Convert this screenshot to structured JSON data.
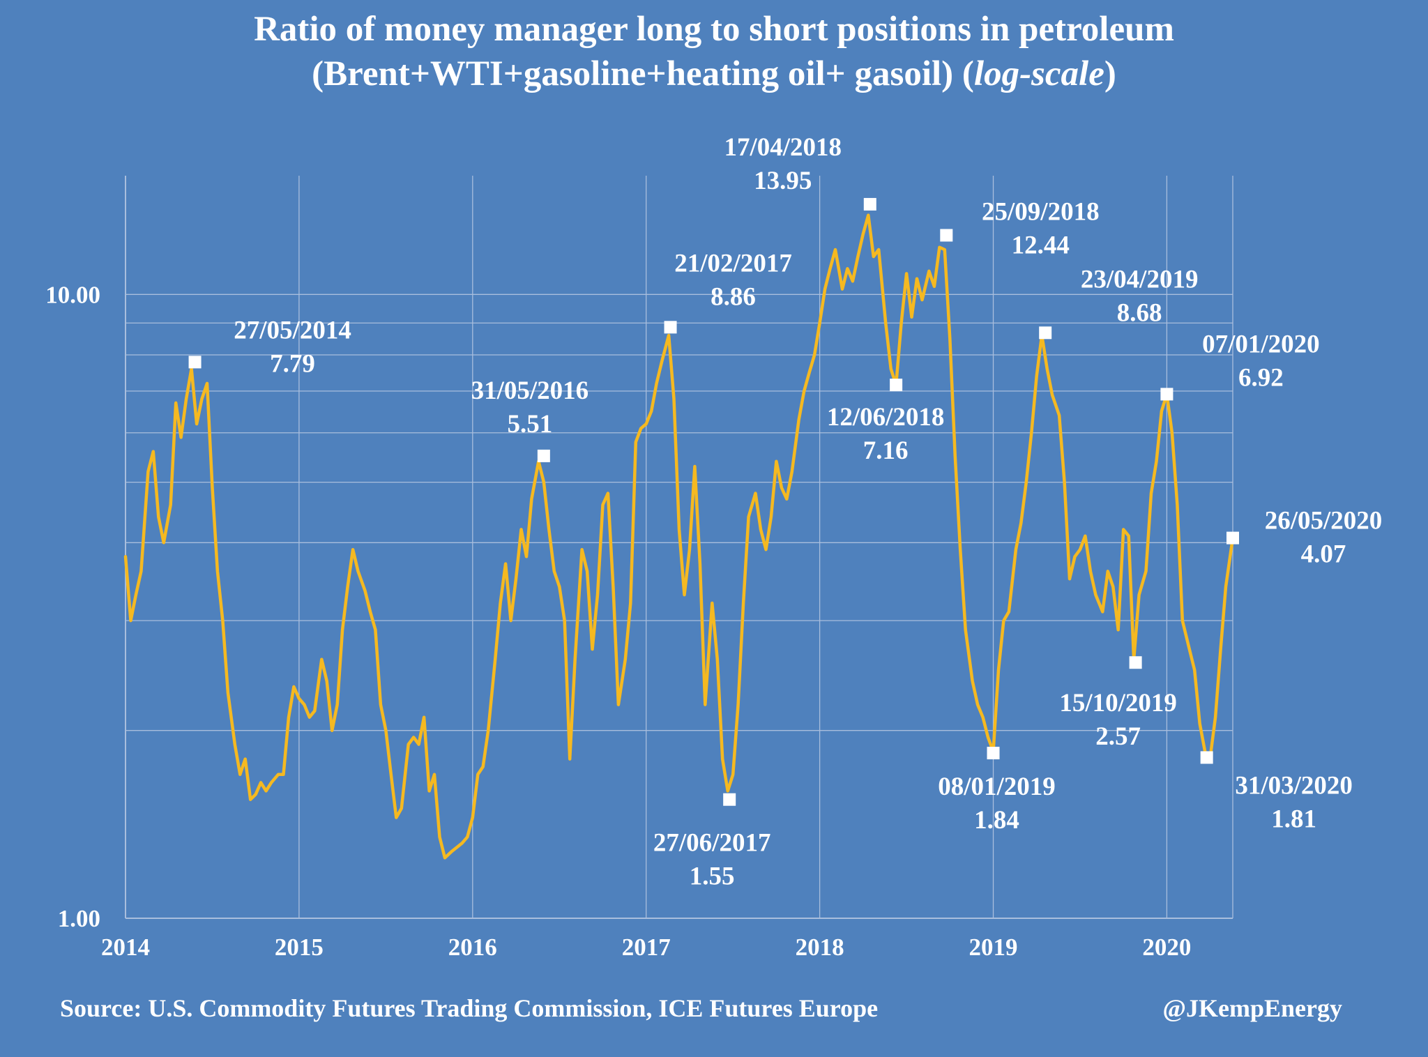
{
  "title_line1": "Ratio of  money manager long to short positions in petroleum",
  "title_line2_pre": "(Brent+WTI+gasoline+heating oil+ gasoil) (",
  "title_line2_italic": "log-scale",
  "title_line2_post": ")",
  "source": "Source: U.S. Commodity Futures Trading Commission, ICE Futures Europe",
  "credit": "@JKempEnergy",
  "colors": {
    "background": "#4f81bd",
    "line": "#f5b921",
    "gridline": "#a9bedd",
    "text": "#ffffff",
    "marker": "#ffffff"
  },
  "chart_data": {
    "type": "line",
    "yscale": "log",
    "ylim": [
      1,
      15.5
    ],
    "xlim": [
      2014.0,
      2020.38
    ],
    "grid": true,
    "yticks": [
      {
        "value": 1,
        "label": "1.00"
      },
      {
        "value": 10,
        "label": "10.00"
      }
    ],
    "ygrid": [
      2,
      3,
      4,
      5,
      6,
      7,
      8,
      9
    ],
    "xticks": [
      {
        "value": 2014,
        "label": "2014"
      },
      {
        "value": 2015,
        "label": "2015"
      },
      {
        "value": 2016,
        "label": "2016"
      },
      {
        "value": 2017,
        "label": "2017"
      },
      {
        "value": 2018,
        "label": "2018"
      },
      {
        "value": 2019,
        "label": "2019"
      },
      {
        "value": 2020,
        "label": "2020"
      }
    ],
    "series": [
      {
        "points": [
          [
            2014.0,
            3.8
          ],
          [
            2014.03,
            3.0
          ],
          [
            2014.06,
            3.3
          ],
          [
            2014.09,
            3.6
          ],
          [
            2014.13,
            5.2
          ],
          [
            2014.16,
            5.6
          ],
          [
            2014.19,
            4.4
          ],
          [
            2014.22,
            4.0
          ],
          [
            2014.26,
            4.6
          ],
          [
            2014.29,
            6.7
          ],
          [
            2014.32,
            5.9
          ],
          [
            2014.35,
            6.8
          ],
          [
            2014.38,
            7.6
          ],
          [
            2014.41,
            6.2
          ],
          [
            2014.44,
            6.8
          ],
          [
            2014.47,
            7.2
          ],
          [
            2014.5,
            4.9
          ],
          [
            2014.53,
            3.6
          ],
          [
            2014.56,
            3.0
          ],
          [
            2014.59,
            2.3
          ],
          [
            2014.63,
            1.9
          ],
          [
            2014.66,
            1.7
          ],
          [
            2014.69,
            1.8
          ],
          [
            2014.72,
            1.55
          ],
          [
            2014.75,
            1.58
          ],
          [
            2014.78,
            1.65
          ],
          [
            2014.81,
            1.6
          ],
          [
            2014.84,
            1.65
          ],
          [
            2014.88,
            1.7
          ],
          [
            2014.91,
            1.7
          ],
          [
            2014.94,
            2.1
          ],
          [
            2014.97,
            2.35
          ],
          [
            2015.0,
            2.25
          ],
          [
            2015.03,
            2.2
          ],
          [
            2015.06,
            2.1
          ],
          [
            2015.09,
            2.15
          ],
          [
            2015.13,
            2.6
          ],
          [
            2015.16,
            2.4
          ],
          [
            2015.19,
            2.0
          ],
          [
            2015.22,
            2.2
          ],
          [
            2015.25,
            2.9
          ],
          [
            2015.28,
            3.4
          ],
          [
            2015.31,
            3.9
          ],
          [
            2015.34,
            3.6
          ],
          [
            2015.38,
            3.35
          ],
          [
            2015.41,
            3.1
          ],
          [
            2015.44,
            2.9
          ],
          [
            2015.47,
            2.2
          ],
          [
            2015.5,
            2.0
          ],
          [
            2015.53,
            1.7
          ],
          [
            2015.56,
            1.45
          ],
          [
            2015.59,
            1.5
          ],
          [
            2015.63,
            1.9
          ],
          [
            2015.66,
            1.95
          ],
          [
            2015.69,
            1.9
          ],
          [
            2015.72,
            2.1
          ],
          [
            2015.75,
            1.6
          ],
          [
            2015.78,
            1.7
          ],
          [
            2015.81,
            1.35
          ],
          [
            2015.84,
            1.25
          ],
          [
            2015.88,
            1.28
          ],
          [
            2015.91,
            1.3
          ],
          [
            2015.94,
            1.32
          ],
          [
            2015.97,
            1.35
          ],
          [
            2016.0,
            1.45
          ],
          [
            2016.03,
            1.7
          ],
          [
            2016.06,
            1.75
          ],
          [
            2016.09,
            2.0
          ],
          [
            2016.13,
            2.6
          ],
          [
            2016.16,
            3.2
          ],
          [
            2016.19,
            3.7
          ],
          [
            2016.22,
            3.0
          ],
          [
            2016.25,
            3.5
          ],
          [
            2016.28,
            4.2
          ],
          [
            2016.31,
            3.8
          ],
          [
            2016.34,
            4.7
          ],
          [
            2016.38,
            5.4
          ],
          [
            2016.41,
            5.0
          ],
          [
            2016.44,
            4.2
          ],
          [
            2016.47,
            3.6
          ],
          [
            2016.5,
            3.4
          ],
          [
            2016.53,
            3.0
          ],
          [
            2016.56,
            1.8
          ],
          [
            2016.59,
            2.6
          ],
          [
            2016.63,
            3.9
          ],
          [
            2016.66,
            3.6
          ],
          [
            2016.69,
            2.7
          ],
          [
            2016.72,
            3.3
          ],
          [
            2016.75,
            4.6
          ],
          [
            2016.78,
            4.8
          ],
          [
            2016.81,
            3.4
          ],
          [
            2016.84,
            2.2
          ],
          [
            2016.88,
            2.6
          ],
          [
            2016.91,
            3.2
          ],
          [
            2016.94,
            5.8
          ],
          [
            2016.97,
            6.1
          ],
          [
            2017.0,
            6.2
          ],
          [
            2017.03,
            6.5
          ],
          [
            2017.06,
            7.2
          ],
          [
            2017.09,
            7.8
          ],
          [
            2017.13,
            8.6
          ],
          [
            2017.16,
            6.8
          ],
          [
            2017.19,
            4.2
          ],
          [
            2017.22,
            3.3
          ],
          [
            2017.25,
            3.9
          ],
          [
            2017.28,
            5.3
          ],
          [
            2017.31,
            3.7
          ],
          [
            2017.34,
            2.2
          ],
          [
            2017.38,
            3.2
          ],
          [
            2017.41,
            2.6
          ],
          [
            2017.44,
            1.8
          ],
          [
            2017.47,
            1.6
          ],
          [
            2017.5,
            1.7
          ],
          [
            2017.53,
            2.2
          ],
          [
            2017.56,
            3.2
          ],
          [
            2017.59,
            4.4
          ],
          [
            2017.63,
            4.8
          ],
          [
            2017.66,
            4.2
          ],
          [
            2017.69,
            3.9
          ],
          [
            2017.72,
            4.4
          ],
          [
            2017.75,
            5.4
          ],
          [
            2017.78,
            4.9
          ],
          [
            2017.81,
            4.7
          ],
          [
            2017.84,
            5.2
          ],
          [
            2017.88,
            6.3
          ],
          [
            2017.91,
            7.0
          ],
          [
            2017.94,
            7.5
          ],
          [
            2017.97,
            8.0
          ],
          [
            2018.0,
            9.0
          ],
          [
            2018.03,
            10.2
          ],
          [
            2018.06,
            11.0
          ],
          [
            2018.09,
            11.8
          ],
          [
            2018.13,
            10.2
          ],
          [
            2018.16,
            11.0
          ],
          [
            2018.19,
            10.5
          ],
          [
            2018.22,
            11.5
          ],
          [
            2018.25,
            12.5
          ],
          [
            2018.28,
            13.4
          ],
          [
            2018.31,
            11.5
          ],
          [
            2018.34,
            11.8
          ],
          [
            2018.38,
            9.0
          ],
          [
            2018.41,
            7.6
          ],
          [
            2018.44,
            7.16
          ],
          [
            2018.47,
            9.0
          ],
          [
            2018.5,
            10.8
          ],
          [
            2018.53,
            9.2
          ],
          [
            2018.56,
            10.6
          ],
          [
            2018.59,
            9.8
          ],
          [
            2018.63,
            10.9
          ],
          [
            2018.66,
            10.3
          ],
          [
            2018.69,
            11.9
          ],
          [
            2018.72,
            11.8
          ],
          [
            2018.75,
            8.5
          ],
          [
            2018.78,
            5.5
          ],
          [
            2018.81,
            3.9
          ],
          [
            2018.84,
            2.9
          ],
          [
            2018.88,
            2.4
          ],
          [
            2018.91,
            2.2
          ],
          [
            2018.94,
            2.1
          ],
          [
            2018.97,
            1.95
          ],
          [
            2019.0,
            1.85
          ],
          [
            2019.03,
            2.5
          ],
          [
            2019.06,
            3.0
          ],
          [
            2019.09,
            3.1
          ],
          [
            2019.13,
            3.9
          ],
          [
            2019.16,
            4.3
          ],
          [
            2019.19,
            5.0
          ],
          [
            2019.22,
            6.0
          ],
          [
            2019.25,
            7.4
          ],
          [
            2019.28,
            8.6
          ],
          [
            2019.31,
            7.6
          ],
          [
            2019.34,
            6.9
          ],
          [
            2019.38,
            6.4
          ],
          [
            2019.41,
            5.0
          ],
          [
            2019.44,
            3.5
          ],
          [
            2019.47,
            3.8
          ],
          [
            2019.5,
            3.9
          ],
          [
            2019.53,
            4.1
          ],
          [
            2019.56,
            3.6
          ],
          [
            2019.59,
            3.3
          ],
          [
            2019.63,
            3.1
          ],
          [
            2019.66,
            3.6
          ],
          [
            2019.69,
            3.4
          ],
          [
            2019.72,
            2.9
          ],
          [
            2019.75,
            4.2
          ],
          [
            2019.78,
            4.1
          ],
          [
            2019.81,
            2.6
          ],
          [
            2019.84,
            3.3
          ],
          [
            2019.88,
            3.6
          ],
          [
            2019.91,
            4.8
          ],
          [
            2019.94,
            5.4
          ],
          [
            2019.97,
            6.5
          ],
          [
            2020.0,
            6.92
          ],
          [
            2020.03,
            6.0
          ],
          [
            2020.06,
            4.6
          ],
          [
            2020.09,
            3.0
          ],
          [
            2020.13,
            2.7
          ],
          [
            2020.16,
            2.5
          ],
          [
            2020.19,
            2.05
          ],
          [
            2020.22,
            1.85
          ],
          [
            2020.25,
            1.81
          ],
          [
            2020.28,
            2.1
          ],
          [
            2020.31,
            2.7
          ],
          [
            2020.34,
            3.4
          ],
          [
            2020.38,
            4.07
          ]
        ]
      }
    ],
    "annotations": [
      {
        "date": "27/05/2014",
        "value_label": "7.79",
        "x": 2014.4,
        "y": 7.79
      },
      {
        "date": "31/05/2016",
        "value_label": "5.51",
        "x": 2016.41,
        "y": 5.51
      },
      {
        "date": "21/02/2017",
        "value_label": "8.86",
        "x": 2017.14,
        "y": 8.86
      },
      {
        "date": "27/06/2017",
        "value_label": "1.55",
        "x": 2017.48,
        "y": 1.55
      },
      {
        "date": "17/04/2018",
        "value_label": "13.95",
        "x": 2018.29,
        "y": 13.95
      },
      {
        "date": "12/06/2018",
        "value_label": "7.16",
        "x": 2018.44,
        "y": 7.16
      },
      {
        "date": "25/09/2018",
        "value_label": "12.44",
        "x": 2018.73,
        "y": 12.44
      },
      {
        "date": "08/01/2019",
        "value_label": "1.84",
        "x": 2019.0,
        "y": 1.84
      },
      {
        "date": "23/04/2019",
        "value_label": "8.68",
        "x": 2019.3,
        "y": 8.68
      },
      {
        "date": "15/10/2019",
        "value_label": "2.57",
        "x": 2019.82,
        "y": 2.57
      },
      {
        "date": "07/01/2020",
        "value_label": "6.92",
        "x": 2020.0,
        "y": 6.92
      },
      {
        "date": "31/03/2020",
        "value_label": "1.81",
        "x": 2020.23,
        "y": 1.81
      },
      {
        "date": "26/05/2020",
        "value_label": "4.07",
        "x": 2020.38,
        "y": 4.07
      }
    ]
  }
}
